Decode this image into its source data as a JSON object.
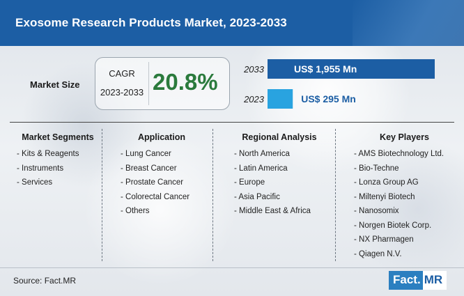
{
  "title": "Exosome Research Products Market, 2023-2033",
  "market_size_label": "Market Size",
  "cagr": {
    "label": "CAGR",
    "period": "2023-2033",
    "value": "20.8%"
  },
  "colors": {
    "header": "#1c5ea4",
    "bar_2033": "#1c5ea4",
    "bar_2023": "#29a3e0",
    "cagr_value": "#2a7a3c"
  },
  "chart_data": {
    "type": "bar",
    "orientation": "horizontal",
    "categories": [
      "2033",
      "2023"
    ],
    "values": [
      1955,
      295
    ],
    "value_labels": [
      "US$ 1,955 Mn",
      "US$ 295 Mn"
    ],
    "unit": "US$ Mn"
  },
  "columns": [
    {
      "title": "Market Segments",
      "items": [
        "- Kits & Reagents",
        "- Instruments",
        "- Services"
      ]
    },
    {
      "title": "Application",
      "items": [
        "- Lung Cancer",
        "- Breast Cancer",
        "- Prostate Cancer",
        "- Colorectal Cancer",
        "- Others"
      ]
    },
    {
      "title": "Regional Analysis",
      "items": [
        "- North America",
        "- Latin America",
        "- Europe",
        "- Asia Pacific",
        "- Middle East & Africa"
      ]
    },
    {
      "title": "Key Players",
      "items": [
        "- AMS Biotechnology Ltd.",
        "- Bio-Techne",
        "- Lonza Group AG",
        "- Miltenyi Biotech",
        "- Nanosomix",
        "- Norgen Biotek Corp.",
        "- NX Pharmagen",
        "- Qiagen N.V."
      ]
    }
  ],
  "source": "Source: Fact.MR",
  "logo": {
    "part1": "Fact.",
    "part2": "MR"
  }
}
